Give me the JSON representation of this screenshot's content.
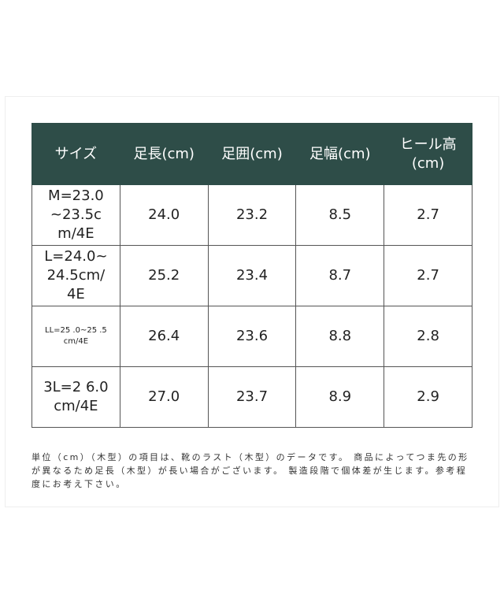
{
  "headers": [
    "サイズ",
    "足長(cm)",
    "足囲(cm)",
    "足幅(cm)",
    "ヒール高(cm)"
  ],
  "rows": [
    [
      "M=23.0~23.5cm/4E",
      "24.0",
      "23.2",
      "8.5",
      "2.7"
    ],
    [
      "L=24.0~24.5cm/4E",
      "25.2",
      "23.4",
      "8.7",
      "2.7"
    ],
    [
      "LL=25 .0~25 .5cm/4E",
      "26.4",
      "23.6",
      "8.8",
      "2.8"
    ],
    [
      "3L=2 6.0cm/4E",
      "27.0",
      "23.7",
      "8.9",
      "2.9"
    ]
  ],
  "note": "単位（cm）（木型）の項目は、靴のラスト（木型）のデータです。 商品によってつま先の形が異なるため足長（木型）が長い場合がございます。 製造段階で個体差が生じます。参考程度にお考え下さい。",
  "colors": {
    "header_bg": "#2e4d48"
  }
}
